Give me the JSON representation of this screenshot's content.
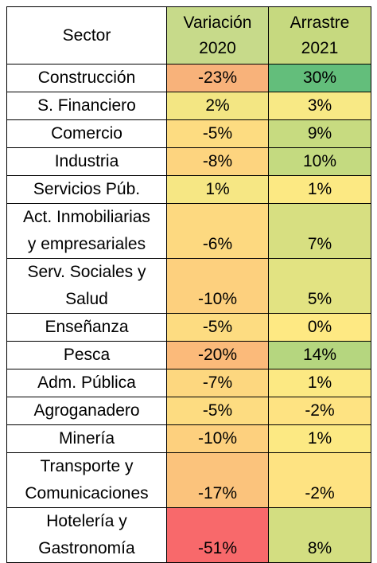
{
  "header": {
    "sector": "Sector",
    "variacion_line1": "Variación",
    "variacion_line2": "2020",
    "arrastre_line1": "Arrastre",
    "arrastre_line2": "2021"
  },
  "header_colors": {
    "sector": "#ffffff",
    "variacion": "#c7da8a",
    "arrastre": "#c6d97f"
  },
  "rows": [
    {
      "sector": [
        "Construcción"
      ],
      "variacion": "-23%",
      "arrastre": "30%",
      "var_color": "#f8b27a",
      "arr_color": "#63be7b"
    },
    {
      "sector": [
        "S. Financiero"
      ],
      "variacion": "2%",
      "arrastre": "3%",
      "var_color": "#f3e683",
      "arr_color": "#f8e985"
    },
    {
      "sector": [
        "Comercio"
      ],
      "variacion": "-5%",
      "arrastre": "9%",
      "var_color": "#fddc81",
      "arr_color": "#c7db80"
    },
    {
      "sector": [
        "Industria"
      ],
      "variacion": "-8%",
      "arrastre": "10%",
      "var_color": "#fdd47f",
      "arr_color": "#c4da80"
    },
    {
      "sector": [
        "Servicios Púb."
      ],
      "variacion": "1%",
      "arrastre": "1%",
      "var_color": "#f6e784",
      "arr_color": "#fce983"
    },
    {
      "sector": [
        "Act. Inmobiliarias",
        "y empresariales"
      ],
      "variacion": "-6%",
      "arrastre": "7%",
      "var_color": "#fdd980",
      "arr_color": "#d7df81"
    },
    {
      "sector": [
        "Serv. Sociales y",
        "Salud"
      ],
      "variacion": "-10%",
      "arrastre": "5%",
      "var_color": "#fdd07e",
      "arr_color": "#e2e382"
    },
    {
      "sector": [
        "Enseñanza"
      ],
      "variacion": "-5%",
      "arrastre": "0%",
      "var_color": "#fddc81",
      "arr_color": "#fee983"
    },
    {
      "sector": [
        "Pesca"
      ],
      "variacion": "-20%",
      "arrastre": "14%",
      "var_color": "#fbba7a",
      "arr_color": "#b5d67f"
    },
    {
      "sector": [
        "Adm. Pública"
      ],
      "variacion": "-7%",
      "arrastre": "1%",
      "var_color": "#fdd77f",
      "arr_color": "#fce983"
    },
    {
      "sector": [
        "Agroganadero"
      ],
      "variacion": "-5%",
      "arrastre": "-2%",
      "var_color": "#fddc81",
      "arr_color": "#fee382"
    },
    {
      "sector": [
        "Minería"
      ],
      "variacion": "-10%",
      "arrastre": "1%",
      "var_color": "#fdd07e",
      "arr_color": "#fce983"
    },
    {
      "sector": [
        "Transporte y",
        "Comunicaciones"
      ],
      "variacion": "-17%",
      "arrastre": "-2%",
      "var_color": "#fbc37c",
      "arr_color": "#fee382"
    },
    {
      "sector": [
        "Hotelería y",
        "Gastronomía"
      ],
      "variacion": "-51%",
      "arrastre": "8%",
      "var_color": "#f8696b",
      "arr_color": "#d3de81"
    }
  ]
}
